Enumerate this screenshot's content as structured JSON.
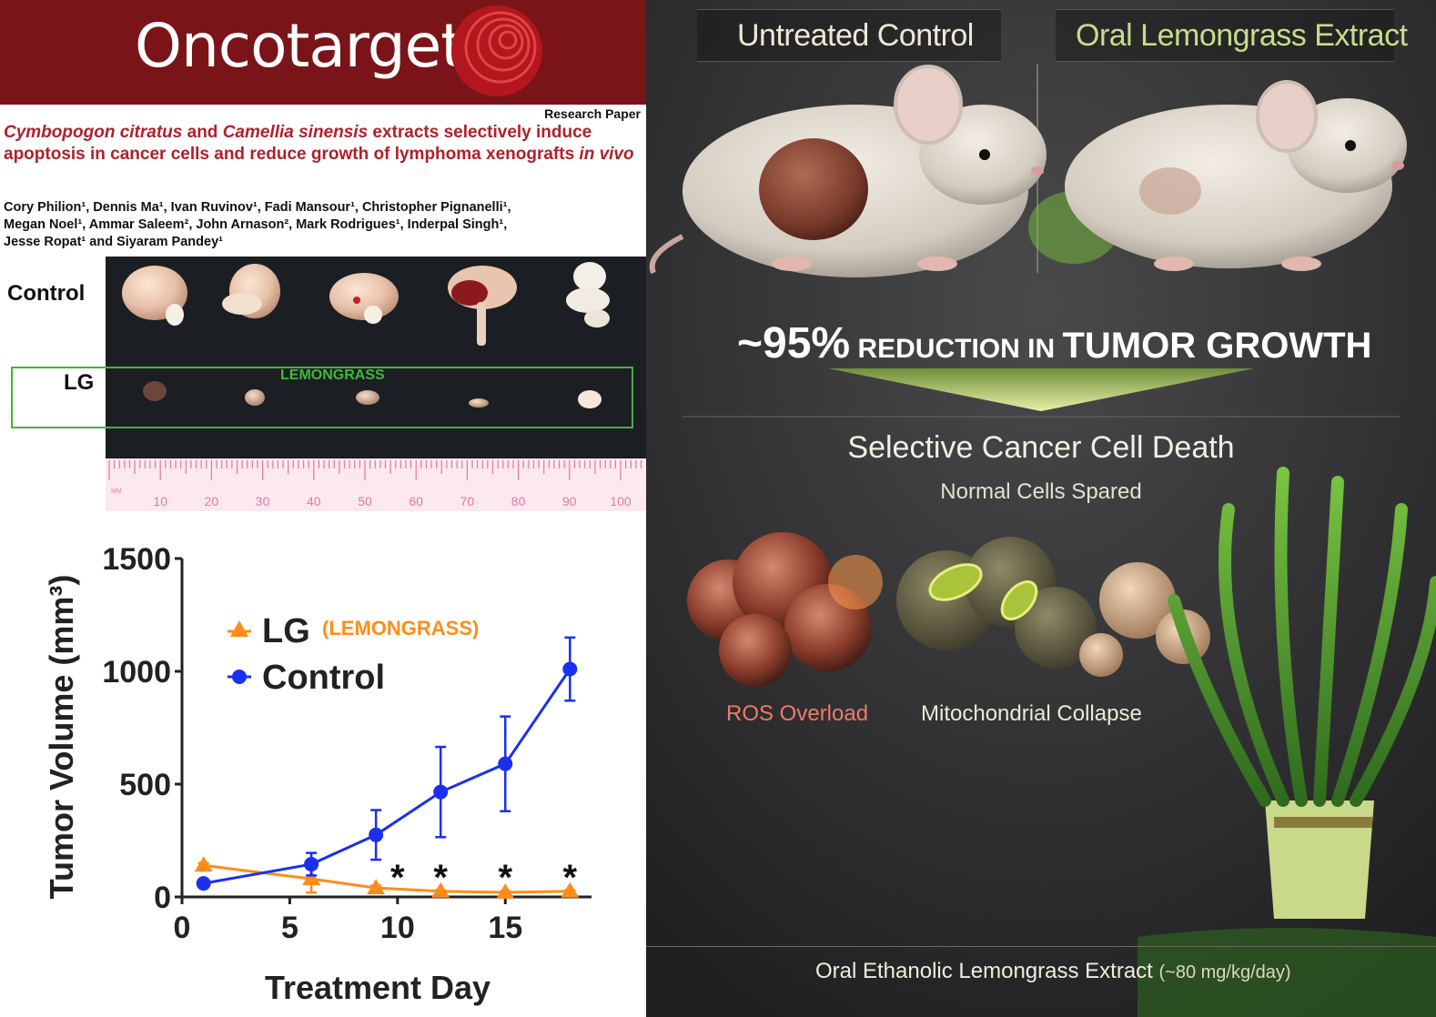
{
  "journal": {
    "name": "Oncotarget",
    "paper_type": "Research Paper"
  },
  "paper": {
    "title_part1": "Cymbopogon citratus",
    "title_part2": " and ",
    "title_part3": "Camellia sinensis",
    "title_part4": " extracts selectively induce apoptosis in cancer cells and reduce growth of lymphoma xenografts ",
    "title_part5": "in vivo",
    "authors_line1": "Cory Philion¹, Dennis Ma¹, Ivan Ruvinov¹, Fadi Mansour¹, Christopher Pignanelli¹,",
    "authors_line2": "Megan Noel¹, Ammar Saleem², John Arnason², Mark Rodrigues¹, Inderpal Singh¹,",
    "authors_line3": "Jesse Ropat¹ and Siyaram Pandey¹"
  },
  "photo": {
    "row_control": "Control",
    "row_lg": "LG",
    "lg_highlight": "LEMONGRASS",
    "ruler_unit": "MM",
    "ruler_ticks": [
      "10",
      "20",
      "30",
      "40",
      "50",
      "60",
      "70",
      "80",
      "90",
      "100"
    ]
  },
  "chart_data": {
    "type": "line",
    "xlabel": "Treatment Day",
    "ylabel": "Tumor Volume (mm³)",
    "xlim": [
      0,
      19
    ],
    "ylim": [
      0,
      1500
    ],
    "xticks": [
      0,
      5,
      10,
      15
    ],
    "yticks": [
      0,
      500,
      1000,
      1500
    ],
    "legend_position": "top-left",
    "significance_marker": "*",
    "significance_days": [
      10,
      12,
      15,
      18
    ],
    "series": [
      {
        "name": "LG",
        "legend_note": "(LEMONGRASS)",
        "color": "#ff8c1a",
        "marker": "triangle",
        "x": [
          1,
          6,
          9,
          12,
          15,
          18
        ],
        "y": [
          140,
          80,
          40,
          25,
          20,
          25
        ],
        "error": [
          10,
          60,
          10,
          5,
          5,
          5
        ]
      },
      {
        "name": "Control",
        "color": "#1a30ee",
        "marker": "circle",
        "x": [
          1,
          6,
          9,
          12,
          15,
          18
        ],
        "y": [
          60,
          145,
          275,
          465,
          590,
          1010
        ],
        "error": [
          10,
          50,
          110,
          200,
          210,
          140
        ]
      }
    ]
  },
  "infographic": {
    "untreated_label": "Untreated Control",
    "treated_label": "Oral Lemongrass Extract",
    "reduction_value": "~95%",
    "reduction_mid": " REDUCTION IN ",
    "reduction_end": "TUMOR GROWTH",
    "selective_title": "Selective Cancer Cell Death",
    "normal_spared": "Normal Cells Spared",
    "ros_label": "ROS Overload",
    "mito_label": "Mitochondrial Collapse",
    "dose_label": "Oral Ethanolic Lemongrass Extract",
    "dose_value": "(~80 mg/kg/day)",
    "colors": {
      "ros": "#f07a6a",
      "lemongrass_green": "#8fcf4a",
      "background": "#2f2f31"
    }
  }
}
